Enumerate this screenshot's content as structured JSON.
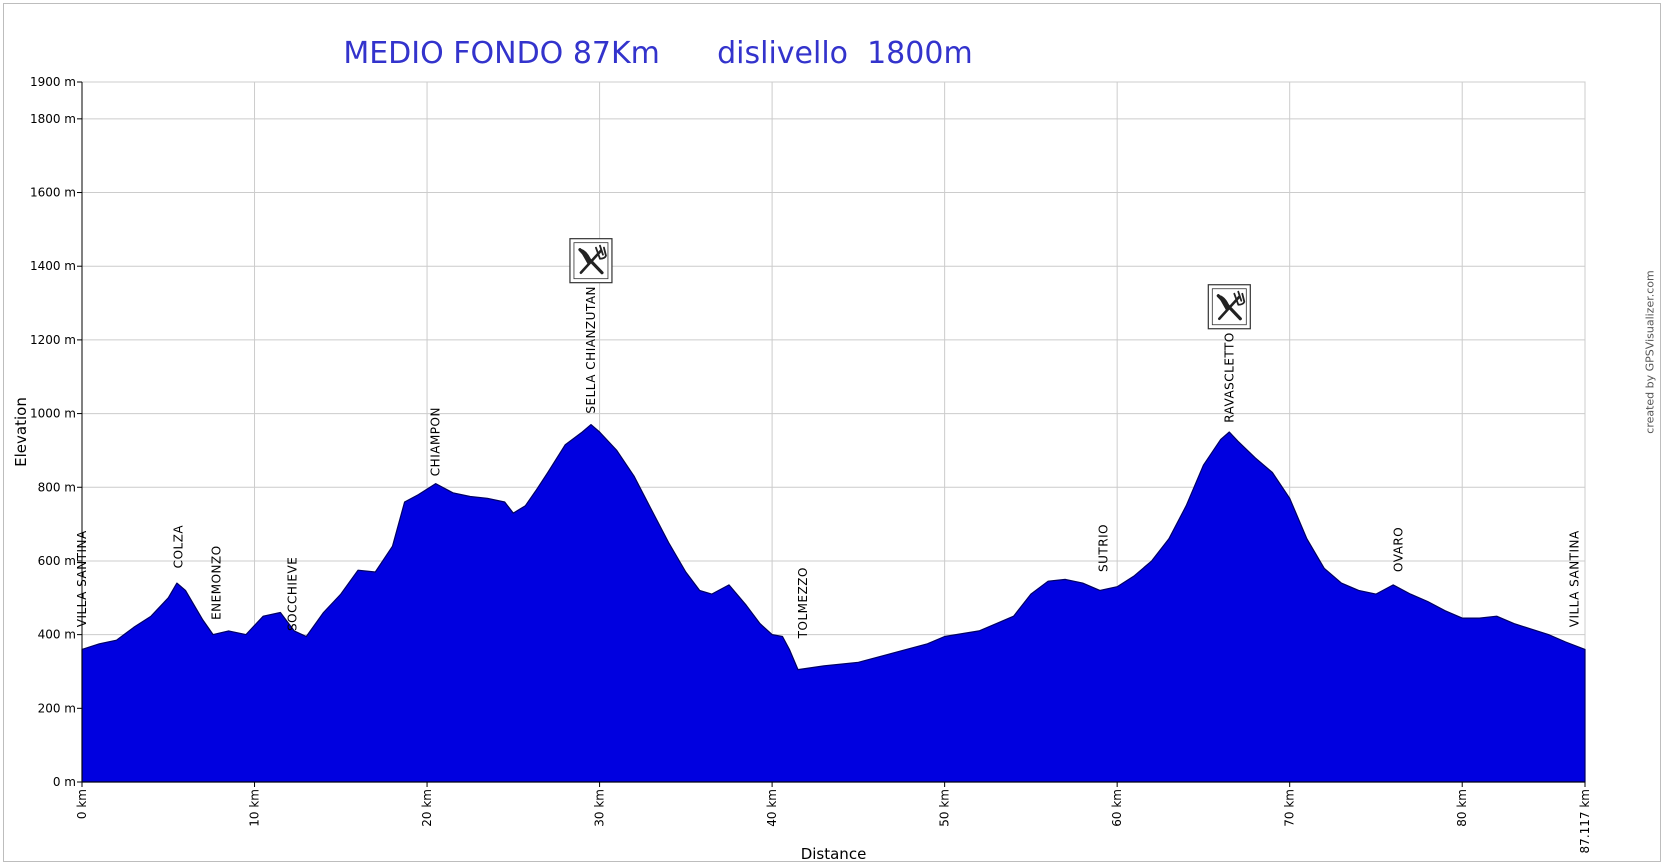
{
  "chart_data": {
    "type": "area",
    "title": "MEDIO FONDO 87Km      dislivello  1800m",
    "xlabel": "Distance",
    "ylabel": "Elevation",
    "xlim": [
      0,
      87.117
    ],
    "ylim": [
      0,
      1900
    ],
    "x_ticks": [
      0,
      10,
      20,
      30,
      40,
      50,
      60,
      70,
      80,
      87.117
    ],
    "x_tick_labels": [
      "0 km",
      "10 km",
      "20 km",
      "30 km",
      "40 km",
      "50 km",
      "60 km",
      "70 km",
      "80 km",
      "87.117 km"
    ],
    "y_ticks": [
      0,
      200,
      400,
      600,
      800,
      1000,
      1200,
      1400,
      1600,
      1800,
      1900
    ],
    "y_tick_labels": [
      "0 m",
      "200 m",
      "400 m",
      "600 m",
      "800 m",
      "1000 m",
      "1200 m",
      "1400 m",
      "1600 m",
      "1800 m",
      "1900 m"
    ],
    "grid": true,
    "fill_color": "#0000e0",
    "title_color": "#3333cc",
    "series": [
      {
        "x": [
          0,
          1,
          2,
          3,
          4,
          5,
          5.5,
          6,
          7,
          7.6,
          8.5,
          9.5,
          10.5,
          11.5,
          12.3,
          13,
          14,
          15,
          16,
          17,
          18,
          18.7,
          19.5,
          20.5,
          21.5,
          22.5,
          23.5,
          24.5,
          25,
          25.7,
          26.3,
          27,
          28,
          29,
          29.5,
          30,
          31,
          32,
          33,
          34,
          35,
          35.8,
          36.5,
          37.5,
          38.5,
          39.3,
          40,
          40.6,
          41,
          41.5,
          43,
          45,
          47,
          49,
          50,
          52,
          53,
          54,
          55,
          56,
          57,
          58,
          59,
          59.5,
          60,
          61,
          62,
          63,
          64,
          65,
          66,
          66.5,
          67,
          68,
          69,
          70,
          71,
          72,
          73,
          74,
          75,
          76,
          77,
          78,
          79,
          80,
          81,
          82,
          83,
          84,
          85,
          86,
          87.117
        ],
        "y": [
          360,
          375,
          385,
          420,
          450,
          500,
          540,
          520,
          440,
          400,
          410,
          400,
          450,
          460,
          410,
          395,
          460,
          510,
          575,
          570,
          640,
          760,
          780,
          810,
          785,
          775,
          770,
          760,
          730,
          750,
          790,
          840,
          915,
          950,
          970,
          950,
          900,
          830,
          740,
          650,
          570,
          520,
          510,
          535,
          480,
          430,
          400,
          395,
          360,
          305,
          315,
          325,
          350,
          375,
          395,
          410,
          430,
          450,
          510,
          545,
          550,
          540,
          520,
          525,
          530,
          560,
          600,
          660,
          750,
          860,
          930,
          950,
          925,
          880,
          840,
          770,
          660,
          580,
          540,
          520,
          510,
          535,
          510,
          490,
          465,
          445,
          445,
          450,
          430,
          415,
          400,
          380,
          360
        ]
      }
    ],
    "markers": [
      {
        "label": "VILLA SANTINA",
        "x": 0,
        "text_bottom": 420
      },
      {
        "label": "COLZA",
        "x": 5.6,
        "text_bottom": 580
      },
      {
        "label": "ENEMONZO",
        "x": 7.8,
        "text_bottom": 440
      },
      {
        "label": "SOCCHIEVE",
        "x": 12.2,
        "text_bottom": 410
      },
      {
        "label": "CHIAMPON",
        "x": 20.5,
        "text_bottom": 830
      },
      {
        "label": "SELLA CHIANZUTAN",
        "x": 29.5,
        "text_bottom": 1000
      },
      {
        "label": "TOLMEZZO",
        "x": 41.8,
        "text_bottom": 390
      },
      {
        "label": "SUTRIO",
        "x": 59.2,
        "text_bottom": 570
      },
      {
        "label": "RAVASCLETTO",
        "x": 66.5,
        "text_bottom": 975
      },
      {
        "label": "OVARO",
        "x": 76.3,
        "text_bottom": 570
      },
      {
        "label": "VILLA SANTINA",
        "x": 86.5,
        "text_bottom": 420
      }
    ],
    "food_stops": [
      {
        "x": 29.5,
        "elevation": 1415,
        "icon": "fork-knife-icon"
      },
      {
        "x": 66.5,
        "elevation": 1290,
        "icon": "fork-knife-icon"
      }
    ]
  },
  "credit": "created by GPSVisualizer.com"
}
